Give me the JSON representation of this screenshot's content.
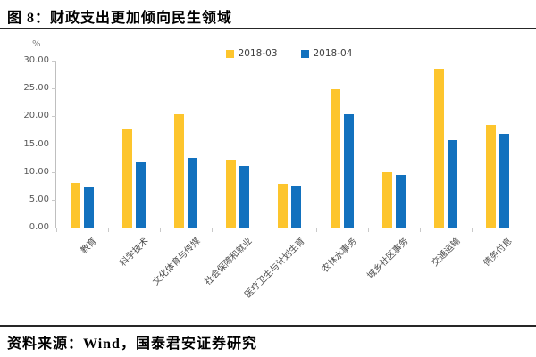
{
  "figure": {
    "title": "图 8：财政支出更加倾向民生领域",
    "source": "资料来源：Wind，国泰君安证券研究"
  },
  "chart_data": {
    "type": "bar",
    "title": "财政支出更加倾向民生领域",
    "unit_label": "%",
    "xlabel": "",
    "ylabel": "%",
    "ylim": [
      0,
      30
    ],
    "y_tick_labels": [
      "0.00",
      "5.00",
      "10.00",
      "15.00",
      "20.00",
      "25.00",
      "30.00"
    ],
    "y_tick_values": [
      0,
      5,
      10,
      15,
      20,
      25,
      30
    ],
    "grid": false,
    "legend_position": "top-center",
    "categories": [
      "教育",
      "科学技术",
      "文化体育与传媒",
      "社会保障和就业",
      "医疗卫生与计划生育",
      "农林水事务",
      "城乡社区事务",
      "交通运输",
      "债务付息"
    ],
    "series": [
      {
        "name": "2018-03",
        "color": "#FDC52D",
        "values": [
          8.1,
          17.8,
          20.4,
          12.2,
          7.8,
          24.8,
          9.9,
          28.5,
          18.5
        ]
      },
      {
        "name": "2018-04",
        "color": "#1271BE",
        "values": [
          7.2,
          11.7,
          12.5,
          11.0,
          7.6,
          20.4,
          9.4,
          15.8,
          16.8
        ]
      }
    ],
    "axis_color": "#BFBFBF",
    "tick_text_color": "#595959"
  }
}
